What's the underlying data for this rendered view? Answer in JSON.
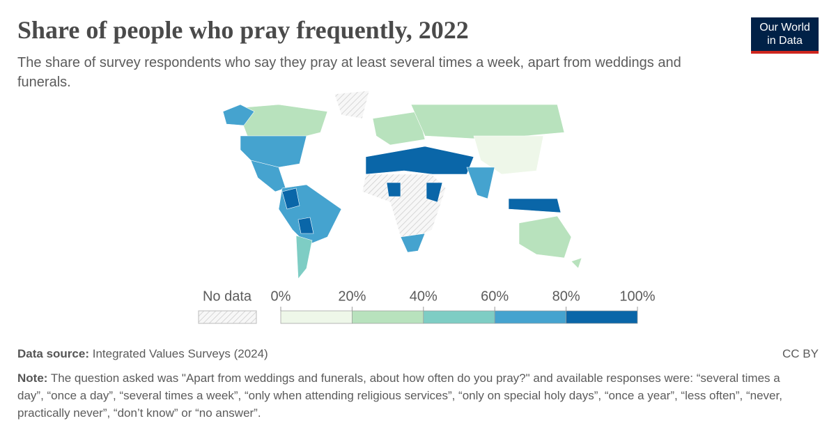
{
  "chart_data": {
    "type": "choropleth",
    "title": "Share of people who pray frequently, 2022",
    "subtitle": "The share of survey respondents who say they pray at least several times a week, apart from weddings and funerals.",
    "legend": {
      "no_data": "No data",
      "ticks": [
        {
          "value": 0,
          "label": "0%"
        },
        {
          "value": 20,
          "label": "20%"
        },
        {
          "value": 40,
          "label": "40%"
        },
        {
          "value": 60,
          "label": "60%"
        },
        {
          "value": 80,
          "label": "80%"
        },
        {
          "value": 100,
          "label": "100%"
        }
      ],
      "colors": [
        "#eef7e9",
        "#b8e2bd",
        "#7ecdc4",
        "#45a3cf",
        "#0a66a8"
      ]
    },
    "logo": [
      "Our World",
      "in Data"
    ],
    "source_label": "Data source:",
    "source": "Integrated Values Surveys (2024)",
    "license": "CC BY",
    "note_label": "Note:",
    "note": "The question asked was \"Apart from weddings and funerals, about how often do you pray?\" and available responses were: “several times a day”, “once a day”, “several times a week”, “only when attending religious services”, “only on special holy days”, “once a year”, “less often”, “never, practically never”, “don’t know” or “no answer”."
  }
}
